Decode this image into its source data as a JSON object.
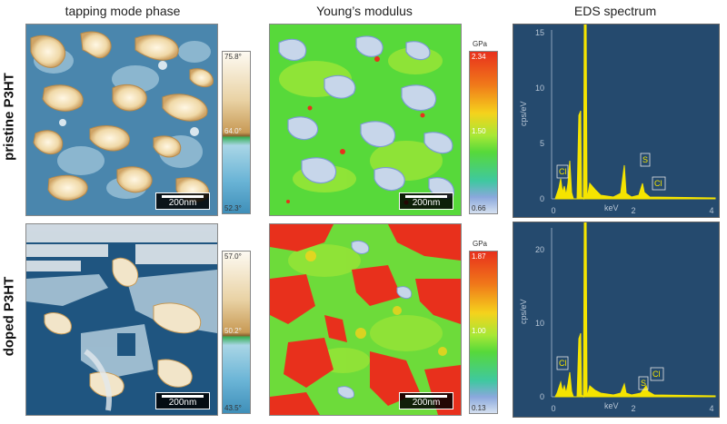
{
  "columns": {
    "phase_title": "tapping mode phase",
    "modulus_title": "Young’s modulus",
    "eds_title": "EDS spectrum"
  },
  "rows": {
    "top_label": "pristine P3HT",
    "bottom_label": "doped P3HT"
  },
  "scalebar": "200nm",
  "phase_cbar_top": {
    "max": "75.8°",
    "mid": "64.0°",
    "min": "52.3°"
  },
  "phase_cbar_bottom": {
    "max": "57.0°",
    "mid": "50.2°",
    "min": "43.5°"
  },
  "modulus_unit": "GPa",
  "modulus_cbar_top": {
    "max": "2.34",
    "mid": "1.50",
    "min": "0.66"
  },
  "modulus_cbar_bottom": {
    "max": "1.87",
    "mid": "1.00",
    "min": "0.13"
  },
  "eds_top": {
    "ylabel": "cps/eV",
    "xlabel": "keV",
    "yticks": [
      "0",
      "5",
      "10",
      "15"
    ],
    "xticks": [
      "0",
      "2",
      "4"
    ],
    "ymax": 15,
    "peaks": {
      "cl_left": "Cl",
      "s": "S",
      "cl_right": "Cl"
    }
  },
  "eds_bottom": {
    "ylabel": "cps/eV",
    "xlabel": "keV",
    "yticks": [
      "0",
      "10",
      "20"
    ],
    "xticks": [
      "0",
      "2",
      "4"
    ],
    "ymax": 23,
    "peaks": {
      "cl_left": "Cl",
      "s": "S",
      "cl_right": "Cl"
    }
  },
  "colors": {
    "phase_blue": "#4a86ad",
    "phase_light": "#cfe0ea",
    "phase_tan": "#d9b478",
    "modulus_green": "#57d93a",
    "modulus_red": "#e8301c",
    "spectrum_bg": "#254a6e",
    "spectrum_line": "#f5e400"
  }
}
